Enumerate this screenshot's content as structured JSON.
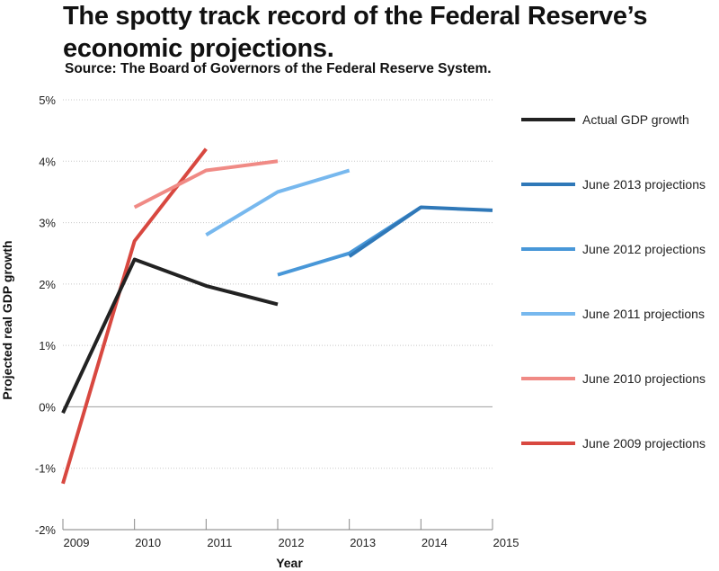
{
  "header": {
    "title": "The spotty track record of the Federal Reserve’s economic projections.",
    "subtitle": "Source: The Board of Governors of the Federal Reserve System."
  },
  "chart_data": {
    "type": "line",
    "title": "The spotty track record of the Federal Reserve’s economic projections.",
    "subtitle": "Source: The Board of Governors of the Federal Reserve System.",
    "xlabel": "Year",
    "ylabel": "Projected real GDP growth",
    "xlim": [
      2009,
      2015
    ],
    "ylim": [
      -2,
      5
    ],
    "x_ticks": [
      "2009",
      "2010",
      "2011",
      "2012",
      "2013",
      "2014",
      "2015"
    ],
    "y_ticks": [
      "-2%",
      "-1%",
      "0%",
      "1%",
      "2%",
      "3%",
      "4%",
      "5%"
    ],
    "grid": "horizontal dotted",
    "legend_position": "right",
    "series": [
      {
        "name": "Actual GDP growth",
        "color": "#222222",
        "x": [
          2009,
          2010,
          2011,
          2012
        ],
        "y": [
          -0.1,
          2.4,
          1.97,
          1.67
        ]
      },
      {
        "name": "June 2013 projections",
        "color": "#2f78b8",
        "x": [
          2013,
          2014,
          2015
        ],
        "y": [
          2.45,
          3.25,
          3.2
        ]
      },
      {
        "name": "June 2012 projections",
        "color": "#4897d8",
        "x": [
          2012,
          2013,
          2014
        ],
        "y": [
          2.15,
          2.5,
          3.25
        ]
      },
      {
        "name": "June 2011 projections",
        "color": "#77b8ee",
        "x": [
          2011,
          2012,
          2013
        ],
        "y": [
          2.8,
          3.5,
          3.85
        ]
      },
      {
        "name": "June 2010 projections",
        "color": "#f08a85",
        "x": [
          2010,
          2011,
          2012
        ],
        "y": [
          3.25,
          3.85,
          4.0
        ]
      },
      {
        "name": "June 2009 projections",
        "color": "#d84840",
        "x": [
          2009,
          2010,
          2011
        ],
        "y": [
          -1.25,
          2.7,
          4.2
        ]
      }
    ]
  }
}
